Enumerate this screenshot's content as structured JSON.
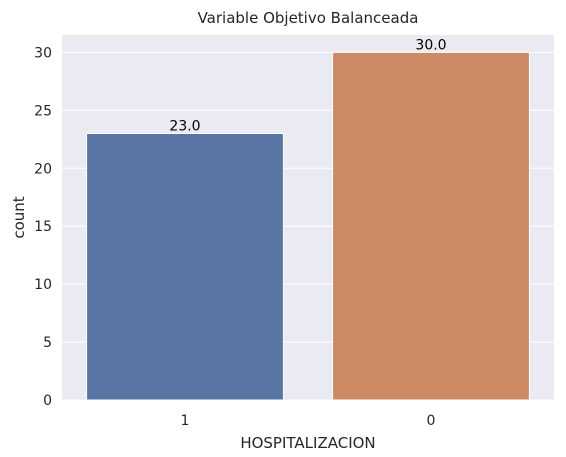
{
  "chart_data": {
    "type": "bar",
    "title": "Variable Objetivo Balanceada",
    "xlabel": "HOSPITALIZACION",
    "ylabel": "count",
    "categories": [
      "1",
      "0"
    ],
    "values": [
      23,
      30
    ],
    "value_labels": [
      "23.0",
      "30.0"
    ],
    "bar_colors": [
      "#5875a4",
      "#cc8963"
    ],
    "ylim": [
      0,
      31.5
    ],
    "yticks": [
      0,
      5,
      10,
      15,
      20,
      25,
      30
    ],
    "ytick_labels": [
      "0",
      "5",
      "10",
      "15",
      "20",
      "25",
      "30"
    ],
    "grid": true,
    "legend": "none",
    "background_color": "#eaeaf2",
    "grid_color": "#ffffff"
  }
}
